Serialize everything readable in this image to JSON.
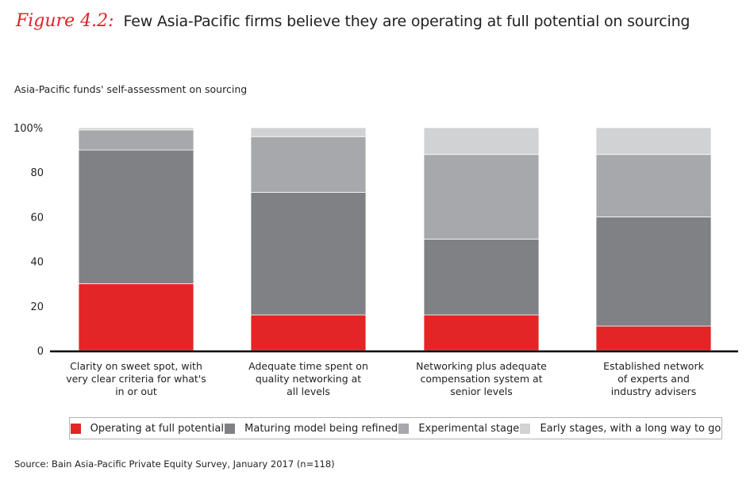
{
  "figure": {
    "label": "Figure 4.2:",
    "title": "Few Asia-Pacific firms believe they are operating at full potential on sourcing",
    "subtitle": "Asia-Pacific funds' self-assessment on sourcing",
    "source": "Source: Bain Asia-Pacific Private Equity Survey, January 2017 (n=118)"
  },
  "colors": {
    "label": "#e41f26",
    "axis": "#000000"
  },
  "chart_data": {
    "type": "bar",
    "stacked": true,
    "title": "Few Asia-Pacific firms believe they are operating at full potential on sourcing",
    "subtitle": "Asia-Pacific funds' self-assessment on sourcing",
    "xlabel": "",
    "ylabel": "",
    "ylim": [
      0,
      100
    ],
    "yticks": [
      0,
      20,
      40,
      60,
      80,
      100
    ],
    "ytick_labels": [
      "0",
      "20",
      "40",
      "60",
      "80",
      "100%"
    ],
    "grid": false,
    "legend_position": "bottom",
    "categories": [
      "Clarity on sweet spot, with very clear criteria for what's in or out",
      "Adequate time spent on quality networking at all levels",
      "Networking plus adequate compensation system at senior levels",
      "Established network of experts and industry advisers"
    ],
    "category_lines": [
      [
        "Clarity on sweet spot, with",
        "very clear criteria for what's",
        "in or out"
      ],
      [
        "Adequate time spent on",
        "quality networking at",
        "all levels"
      ],
      [
        "Networking plus adequate",
        "compensation system at",
        "senior levels"
      ],
      [
        "Established network",
        "of experts and",
        "industry advisers"
      ]
    ],
    "series": [
      {
        "name": "Operating at full potential",
        "color": "#e32526",
        "values": [
          30,
          16,
          16,
          11
        ]
      },
      {
        "name": "Maturing model being refined",
        "color": "#808184",
        "values": [
          60,
          55,
          34,
          49
        ]
      },
      {
        "name": "Experimental stage",
        "color": "#a7a8ab",
        "values": [
          9,
          25,
          38,
          28
        ]
      },
      {
        "name": "Early stages, with a long way to go",
        "color": "#d1d2d4",
        "values": [
          1,
          4,
          12,
          12
        ]
      }
    ]
  }
}
